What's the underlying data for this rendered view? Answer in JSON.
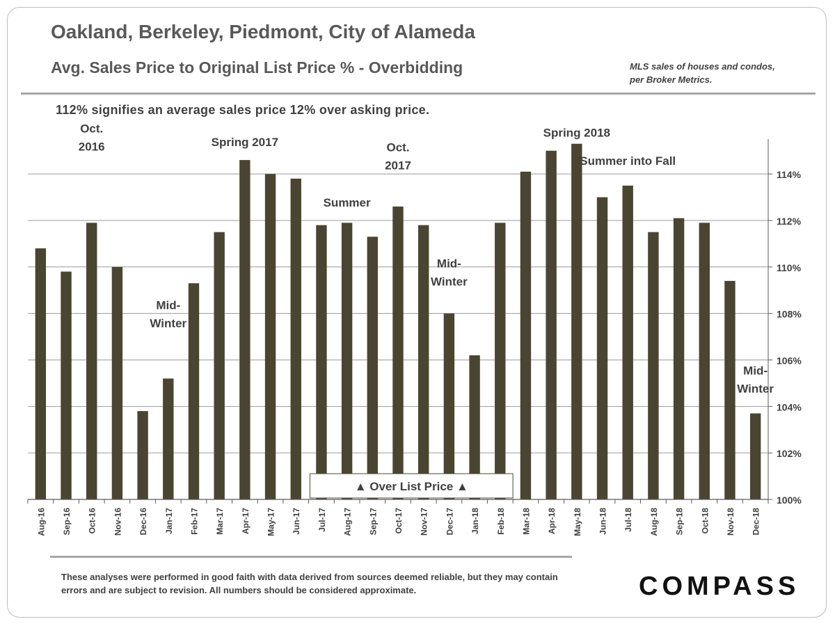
{
  "header": {
    "title": "Oakland, Berkeley, Piedmont, City of Alameda",
    "subtitle": "Avg. Sales Price to Original List Price % - Overbidding",
    "source_line1": "MLS sales of houses and condos,",
    "source_line2": "per Broker Metrics.",
    "note": "112% signifies an average sales price 12% over asking price."
  },
  "chart_data": {
    "type": "bar",
    "categories": [
      "Aug-16",
      "Sep-16",
      "Oct-16",
      "Nov-16",
      "Dec-16",
      "Jan-17",
      "Feb-17",
      "Mar-17",
      "Apr-17",
      "May-17",
      "Jun-17",
      "Jul-17",
      "Aug-17",
      "Sep-17",
      "Oct-17",
      "Nov-17",
      "Dec-17",
      "Jan-18",
      "Feb-18",
      "Mar-18",
      "Apr-18",
      "May-18",
      "Jun-18",
      "Jul-18",
      "Aug-18",
      "Sep-18",
      "Oct-18",
      "Nov-18",
      "Dec-18"
    ],
    "values": [
      110.8,
      109.8,
      111.9,
      110.0,
      103.8,
      105.2,
      109.3,
      111.5,
      114.6,
      114.0,
      113.8,
      111.8,
      111.9,
      111.3,
      112.6,
      111.8,
      108.0,
      106.2,
      111.9,
      114.1,
      115.0,
      115.3,
      113.0,
      113.5,
      111.5,
      112.1,
      111.9,
      109.4,
      103.7
    ],
    "ylim": [
      100,
      115.5
    ],
    "yticks": [
      100,
      102,
      104,
      106,
      108,
      110,
      112,
      114
    ],
    "ytick_labels": [
      "100%",
      "102%",
      "104%",
      "106%",
      "108%",
      "110%",
      "112%",
      "114%"
    ],
    "grid": true,
    "bar_color": "#4a4531",
    "annotations": [
      {
        "lines": [
          "Oct.",
          "2016"
        ],
        "category": "Oct-16",
        "value": 115.0
      },
      {
        "lines": [
          "Mid-",
          "Winter"
        ],
        "category": "Jan-17",
        "value": 107.4
      },
      {
        "lines": [
          "Spring 2017"
        ],
        "category": "Apr-17",
        "value": 115.2
      },
      {
        "lines": [
          "Summer"
        ],
        "category": "Aug-17",
        "value": 112.6
      },
      {
        "lines": [
          "Oct.",
          "2017"
        ],
        "category": "Oct-17",
        "value": 114.2
      },
      {
        "lines": [
          "Mid-",
          "Winter"
        ],
        "category": "Dec-17",
        "value": 109.2
      },
      {
        "lines": [
          "Spring 2018"
        ],
        "category": "May-18",
        "value": 115.6
      },
      {
        "lines": [
          "Summer into Fall"
        ],
        "category": "Jul-18",
        "value": 114.4
      },
      {
        "lines": [
          "Mid-",
          "Winter"
        ],
        "category": "Dec-18",
        "value": 104.6
      }
    ],
    "callout": {
      "text": "▲ Over List Price ▲",
      "from": "Jul-17",
      "to": "Jan-18"
    }
  },
  "footer": {
    "disclaimer": "These analyses were performed in good faith with data derived from sources deemed reliable, but they may contain errors and are subject to revision. All numbers should be considered approximate.",
    "logo": "COMPASS"
  }
}
